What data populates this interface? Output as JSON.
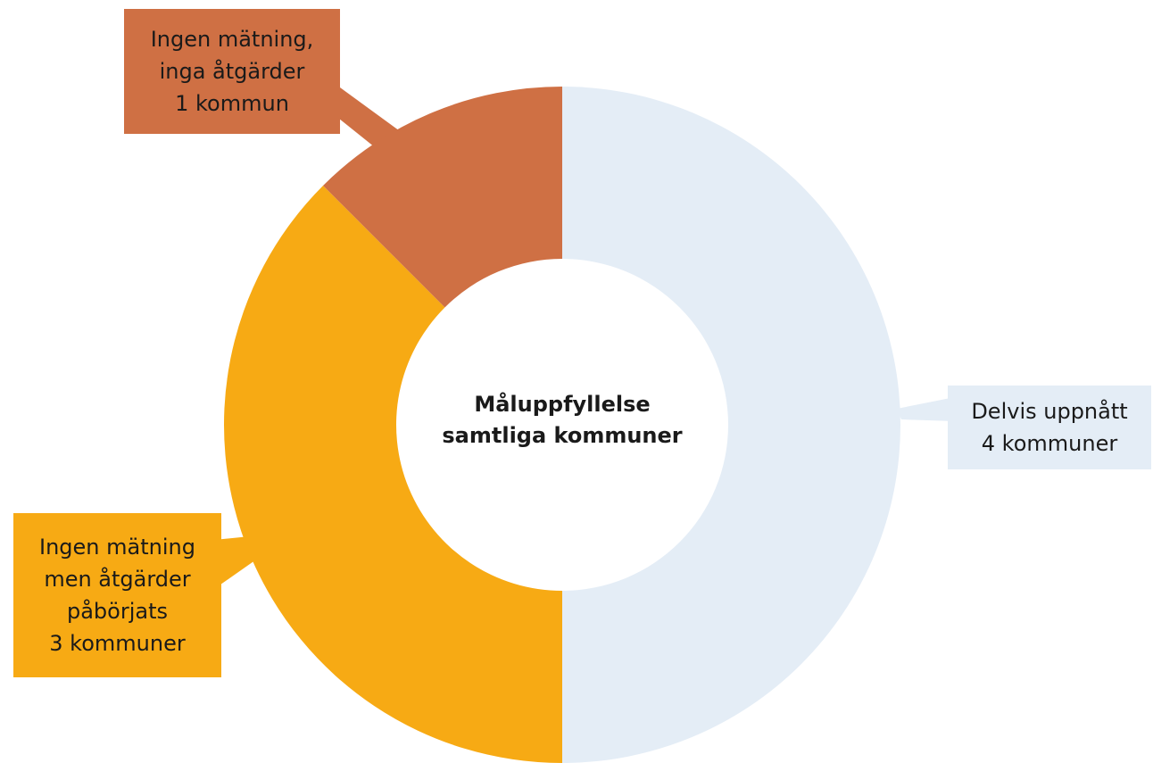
{
  "chart_data": {
    "type": "donut",
    "title": "Måluppfyllelse samtliga kommuner",
    "categories": [
      "Delvis uppnått",
      "Ingen mätning men åtgärder påbörjats",
      "Ingen mätning, inga åtgärder"
    ],
    "values": [
      4,
      3,
      1
    ],
    "value_labels": [
      "4 kommuner",
      "3 kommuner",
      "1 kommun"
    ],
    "colors": [
      "#e4edf6",
      "#f7aa14",
      "#cf7044"
    ]
  }
}
